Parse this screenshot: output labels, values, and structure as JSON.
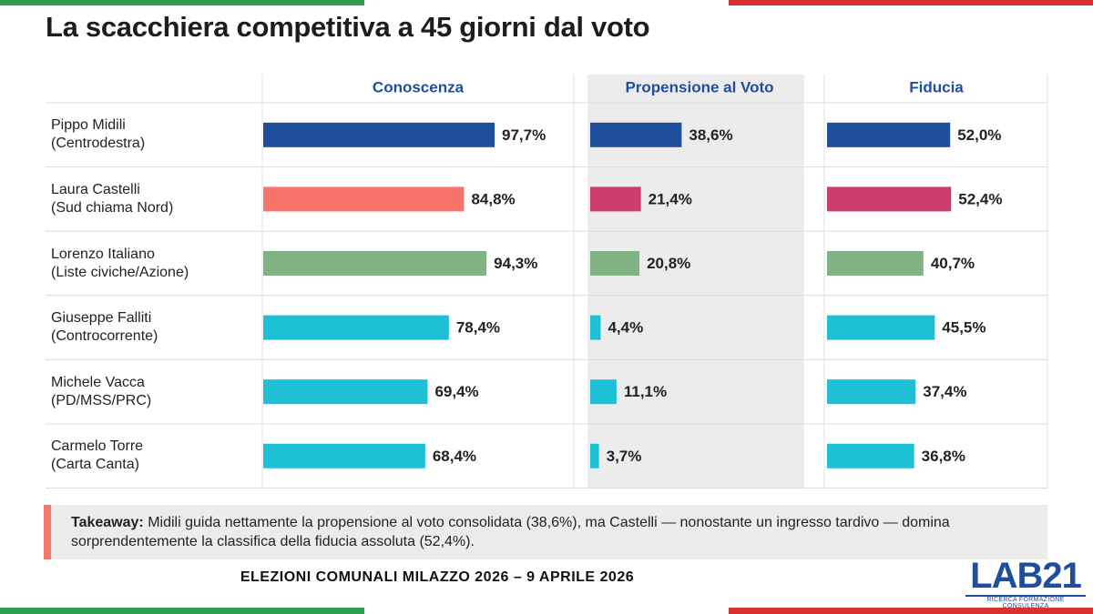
{
  "title": "La scacchiera competitiva a 45 giorni dal voto",
  "chart_data": [
    {
      "type": "bar",
      "orientation": "horizontal",
      "title": "Conoscenza",
      "categories": [
        "Pippo Midili\n(Centrodestra)",
        "Laura Castelli\n(Sud chiama Nord)",
        "Lorenzo Italiano\n(Liste civiche/Azione)",
        "Giuseppe Falliti\n(Controcorrente)",
        "Michele Vacca\n(PD/MSS/PRC)",
        "Carmelo Torre\n(Carta Canta)"
      ],
      "values": [
        97.7,
        84.8,
        94.3,
        78.4,
        69.4,
        68.4
      ],
      "value_labels": [
        "97,7%",
        "84,8%",
        "94,3%",
        "78,4%",
        "69,4%",
        "68,4%"
      ],
      "colors": [
        "#1f4e9c",
        "#f8736a",
        "#7fb383",
        "#1ec0d6",
        "#1ec0d6",
        "#1ec0d6"
      ],
      "xlim": [
        0,
        100
      ]
    },
    {
      "type": "bar",
      "orientation": "horizontal",
      "title": "Propensione al Voto",
      "values": [
        38.6,
        21.4,
        20.8,
        4.4,
        11.1,
        3.7
      ],
      "value_labels": [
        "38,6%",
        "21,4%",
        "20,8%",
        "4,4%",
        "11,1%",
        "3,7%"
      ],
      "colors": [
        "#1f4e9c",
        "#cc3c6e",
        "#7fb383",
        "#1ec0d6",
        "#1ec0d6",
        "#1ec0d6"
      ],
      "xlim": [
        0,
        100
      ]
    },
    {
      "type": "bar",
      "orientation": "horizontal",
      "title": "Fiducia",
      "values": [
        52.0,
        52.4,
        40.7,
        45.5,
        37.4,
        36.8
      ],
      "value_labels": [
        "52,0%",
        "52,4%",
        "40,7%",
        "45,5%",
        "37,4%",
        "36,8%"
      ],
      "colors": [
        "#1f4e9c",
        "#cc3c6e",
        "#7fb383",
        "#1ec0d6",
        "#1ec0d6",
        "#1ec0d6"
      ],
      "xlim": [
        0,
        100
      ]
    }
  ],
  "takeaway": {
    "label": "Takeaway:",
    "text": "Midili guida nettamente la propensione al voto consolidata (38,6%), ma Castelli — nonostante un ingresso tardivo — domina sorprendentemente la classifica della fiducia assoluta (52,4%)."
  },
  "footer": "ELEZIONI COMUNALI MILAZZO 2026 – 9 APRILE 2026",
  "logo": {
    "name": "LAB21",
    "tagline": "RICERCA FORMAZIONE CONSULENZA"
  }
}
